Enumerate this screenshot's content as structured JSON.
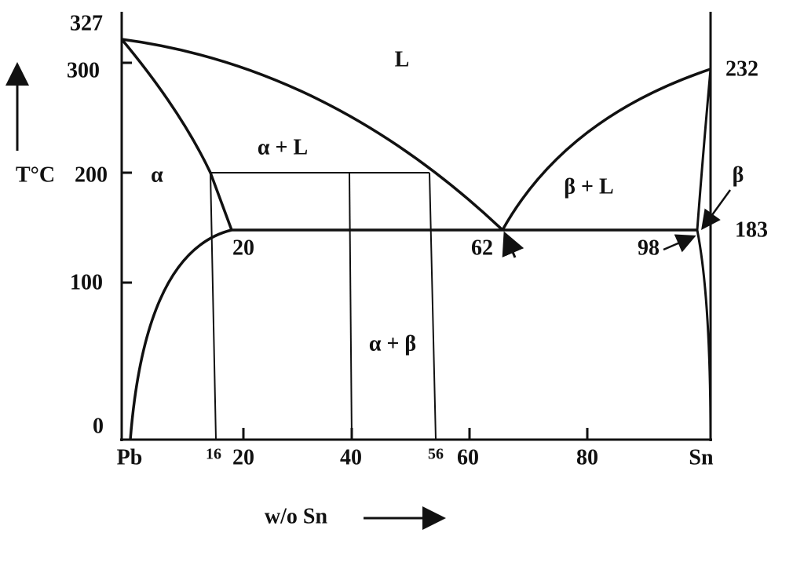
{
  "axis": {
    "y_labels": [
      "327",
      "300",
      "200",
      "100",
      "0"
    ],
    "y_title": "T°C",
    "x_labels": [
      "Pb",
      "16",
      "20",
      "40",
      "56",
      "60",
      "80",
      "Sn"
    ],
    "x_title": "w/o Sn"
  },
  "regions": [
    "L",
    "α + L",
    "α",
    "β + L",
    "α + β",
    "β"
  ],
  "annotations": [
    "232",
    "183",
    "20",
    "62",
    "98"
  ]
}
